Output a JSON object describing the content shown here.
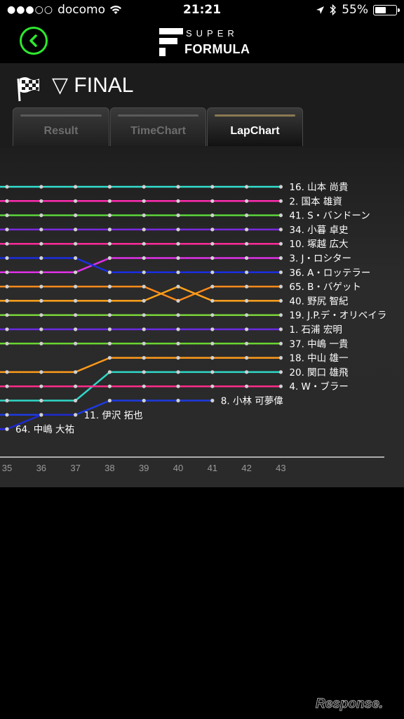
{
  "status_bar": {
    "carrier": "docomo",
    "time": "21:21",
    "battery": "55%",
    "battery_level": 0.55
  },
  "nav": {
    "back_icon": "chevron-left-circle-icon",
    "logo_super": "SUPER",
    "logo_formula": "FORMULA",
    "accent_color": "#2ee82e"
  },
  "session": {
    "title": "▽ FINAL",
    "flag_icon": "checkered-flag-icon"
  },
  "tabs": [
    {
      "label": "Result",
      "active": false
    },
    {
      "label": "TimeChart",
      "active": false
    },
    {
      "label": "LapChart",
      "active": true
    }
  ],
  "chart_data": {
    "type": "line",
    "x_ticks": [
      35,
      36,
      37,
      38,
      39,
      40,
      41,
      42,
      43
    ],
    "y_axis": "position (1 = top)",
    "series": [
      {
        "name": "16. 山本 尚貴",
        "color": "#33e0d0",
        "positions": [
          1,
          1,
          1,
          1,
          1,
          1,
          1,
          1,
          1
        ]
      },
      {
        "name": "2. 国本 雄資",
        "color": "#ff2bb0",
        "positions": [
          2,
          2,
          2,
          2,
          2,
          2,
          2,
          2,
          2
        ]
      },
      {
        "name": "41. S・バンドーン",
        "color": "#5ad43a",
        "positions": [
          3,
          3,
          3,
          3,
          3,
          3,
          3,
          3,
          3
        ]
      },
      {
        "name": "34. 小暮 卓史",
        "color": "#7a2ae0",
        "positions": [
          4,
          4,
          4,
          4,
          4,
          4,
          4,
          4,
          4
        ]
      },
      {
        "name": "10. 塚越 広大",
        "color": "#ff2b9a",
        "positions": [
          5,
          5,
          5,
          5,
          5,
          5,
          5,
          5,
          5
        ]
      },
      {
        "name": "3. J・ロシター",
        "color": "#e030e8",
        "positions": [
          7,
          7,
          7,
          6,
          6,
          6,
          6,
          6,
          6
        ]
      },
      {
        "name": "36. A・ロッテラー",
        "color": "#1a2ee0",
        "positions": [
          6,
          6,
          6,
          7,
          7,
          7,
          7,
          7,
          7
        ]
      },
      {
        "name": "65. B・バゲット",
        "color": "#ff8a1a",
        "positions": [
          8,
          8,
          8,
          8,
          8,
          9,
          8,
          8,
          8
        ]
      },
      {
        "name": "40. 野尻 智紀",
        "color": "#ffa21a",
        "positions": [
          9,
          9,
          9,
          9,
          9,
          8,
          9,
          9,
          9
        ]
      },
      {
        "name": "19. J.P.デ・オリベイラ",
        "color": "#7ad43a",
        "positions": [
          10,
          10,
          10,
          10,
          10,
          10,
          10,
          10,
          10
        ]
      },
      {
        "name": "1. 石浦 宏明",
        "color": "#6a2ae0",
        "positions": [
          11,
          11,
          11,
          11,
          11,
          11,
          11,
          11,
          11
        ]
      },
      {
        "name": "37. 中嶋 一貴",
        "color": "#6ad430",
        "positions": [
          12,
          12,
          12,
          12,
          12,
          12,
          12,
          12,
          12
        ]
      },
      {
        "name": "18. 中山 雄一",
        "color": "#ff9a1a",
        "positions": [
          14,
          14,
          14,
          13,
          13,
          13,
          13,
          13,
          13
        ]
      },
      {
        "name": "20. 関口 雄飛",
        "color": "#30d8c8",
        "positions": [
          16,
          16,
          16,
          14,
          14,
          14,
          14,
          14,
          14
        ]
      },
      {
        "name": "4. W・ブラー",
        "color": "#ff2b8a",
        "positions": [
          15,
          15,
          15,
          15,
          15,
          15,
          15,
          15,
          15
        ]
      },
      {
        "name": "8. 小林 可夢偉",
        "color": "#1e3ae0",
        "positions": [
          17,
          17,
          17,
          16,
          16,
          16,
          16,
          null,
          null
        ]
      },
      {
        "name": "11. 伊沢 拓也",
        "color": "#1e2acc",
        "positions": [
          18,
          17,
          17,
          null,
          null,
          null,
          null,
          null,
          null
        ]
      },
      {
        "name": "64. 中嶋 大祐",
        "color": "#2a2ae8",
        "positions": [
          18,
          null,
          null,
          null,
          null,
          null,
          null,
          null,
          null
        ]
      }
    ]
  },
  "watermark": "Response."
}
